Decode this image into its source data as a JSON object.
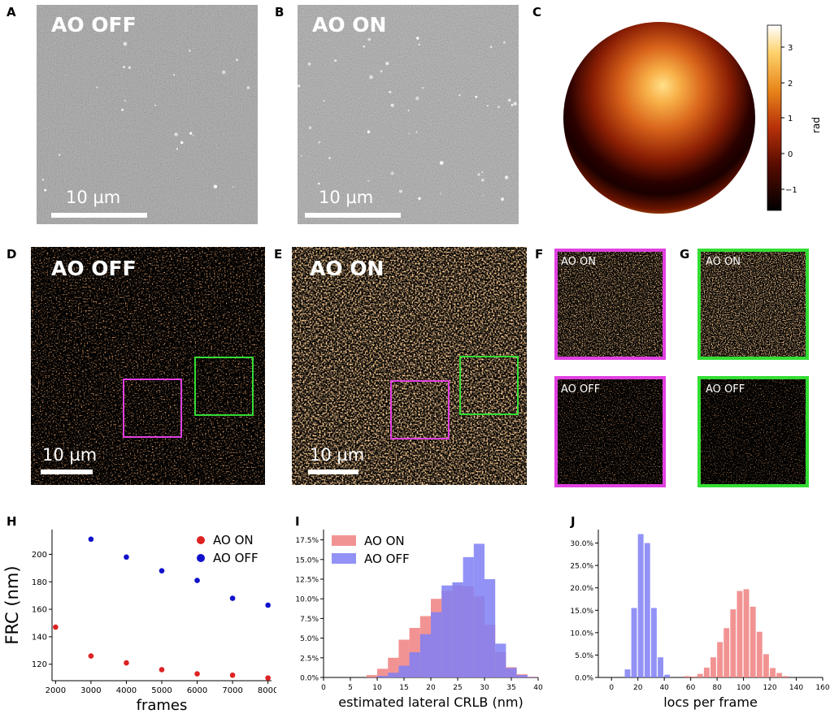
{
  "panels": {
    "A": {
      "label": "A",
      "title": "AO OFF",
      "scale": "10 µm"
    },
    "B": {
      "label": "B",
      "title": "AO ON",
      "scale": "10 µm"
    },
    "C": {
      "label": "C",
      "colorbar_label": "rad",
      "ticks": [
        "3",
        "2",
        "1",
        "0",
        "−1"
      ]
    },
    "D": {
      "label": "D",
      "title": "AO OFF",
      "scale": "10 µm"
    },
    "E": {
      "label": "E",
      "title": "AO ON",
      "scale": "10 µm"
    },
    "F": {
      "label": "F",
      "top": "AO ON",
      "bottom": "AO OFF"
    },
    "G": {
      "label": "G",
      "top": "AO ON",
      "bottom": "AO OFF"
    },
    "H": {
      "label": "H"
    },
    "I": {
      "label": "I"
    },
    "J": {
      "label": "J"
    }
  },
  "colors": {
    "magenta": "#e040e0",
    "green": "#33dd33",
    "red": "#dd2222",
    "blue": "#1010cc",
    "hist_red": "#f08080",
    "hist_blue": "#7f7ff5",
    "hist_purple": "#8a4bc6"
  },
  "chart_data": [
    {
      "type": "scatter",
      "id": "H",
      "xlabel": "frames",
      "ylabel": "FRC (nm)",
      "xlim": [
        1900,
        8100
      ],
      "ylim": [
        108,
        218
      ],
      "xticks": [
        2000,
        3000,
        4000,
        5000,
        6000,
        7000,
        8000
      ],
      "yticks": [
        120,
        140,
        160,
        180,
        200
      ],
      "series": [
        {
          "name": "AO ON",
          "color": "#dd2222",
          "x": [
            2000,
            3000,
            4000,
            5000,
            6000,
            7000,
            8000
          ],
          "y": [
            147,
            126,
            121,
            116,
            113,
            112,
            110
          ]
        },
        {
          "name": "AO OFF",
          "color": "#1010cc",
          "x": [
            3000,
            4000,
            5000,
            6000,
            7000,
            8000
          ],
          "y": [
            211,
            198,
            188,
            181,
            168,
            163
          ]
        }
      ]
    },
    {
      "type": "bar",
      "id": "I",
      "xlabel": "estimated lateral CRLB (nm)",
      "ylabel": "",
      "xlim": [
        0,
        40
      ],
      "ylim": [
        0,
        18.8
      ],
      "xticks": [
        0,
        5,
        10,
        15,
        20,
        25,
        30,
        35,
        40
      ],
      "yticks": [
        0,
        2.5,
        5,
        7.5,
        10,
        12.5,
        15,
        17.5
      ],
      "ytick_labels": [
        "0.0%",
        "2.5%",
        "5.0%",
        "7.5%",
        "10.0%",
        "12.5%",
        "15.0%",
        "17.5%"
      ],
      "bin_edges": [
        8,
        10,
        12,
        14,
        16,
        18,
        20,
        22,
        24,
        26,
        28,
        30,
        32,
        34,
        36,
        38,
        40
      ],
      "series": [
        {
          "name": "AO ON",
          "color": "#f08080",
          "values": [
            0.3,
            1.1,
            2.5,
            4.8,
            6.3,
            7.8,
            10.0,
            11.0,
            11.7,
            11.6,
            10.3,
            6.7,
            3.2,
            1.3,
            0.4,
            0.1
          ]
        },
        {
          "name": "AO OFF",
          "color": "#7f7ff5",
          "values": [
            0.0,
            0.2,
            0.6,
            1.5,
            3.2,
            5.5,
            8.3,
            11.7,
            12.1,
            15.3,
            17.0,
            12.5,
            4.3,
            1.2,
            0.3,
            0.05
          ]
        }
      ]
    },
    {
      "type": "bar",
      "id": "J",
      "xlabel": "locs per frame",
      "ylabel": "",
      "xlim": [
        -10,
        160
      ],
      "ylim": [
        0,
        33
      ],
      "xticks": [
        0,
        20,
        40,
        60,
        80,
        100,
        120,
        140,
        160
      ],
      "yticks": [
        0,
        5,
        10,
        15,
        20,
        25,
        30
      ],
      "ytick_labels": [
        "0.0%",
        "5.0%",
        "10.0%",
        "15.0%",
        "20.0%",
        "25.0%",
        "30.0%"
      ],
      "series": [
        {
          "name": "AO OFF",
          "color": "#7f7ff5",
          "bin_edges": [
            10,
            15,
            20,
            25,
            30,
            35,
            40,
            45
          ],
          "values": [
            1.8,
            15.5,
            32.0,
            30.0,
            15.5,
            4.5,
            0.6
          ]
        },
        {
          "name": "AO ON",
          "color": "#f08080",
          "bin_edges": [
            55,
            60,
            65,
            70,
            75,
            80,
            85,
            90,
            95,
            100,
            105,
            110,
            115,
            120,
            125,
            130,
            135
          ],
          "values": [
            0.3,
            0.2,
            0.8,
            2.2,
            4.5,
            7.9,
            11.0,
            15.2,
            19.3,
            19.7,
            15.8,
            10.2,
            5.2,
            2.1,
            1.0,
            0.3
          ]
        }
      ]
    }
  ]
}
